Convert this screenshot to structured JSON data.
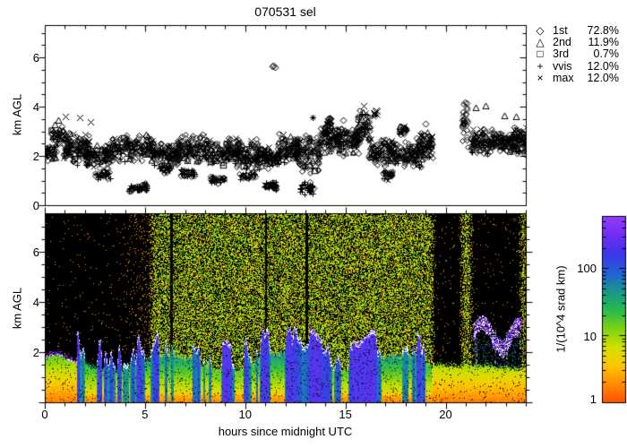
{
  "title": "070531 sel",
  "axes": {
    "x": {
      "label": "hours since midnight UTC",
      "min": 0,
      "max": 24,
      "major_ticks": [
        0,
        5,
        10,
        15,
        20
      ],
      "minor_step": 1
    },
    "y_top": {
      "label": "km AGL",
      "min": 0,
      "max": 7.3,
      "label_ticks": [
        0,
        2,
        4,
        6
      ],
      "minor_step": 0.5
    },
    "y_bottom": {
      "label": "km AGL",
      "min": 0,
      "max": 7.54,
      "label_ticks": [
        2,
        4,
        6
      ],
      "minor_step": 0.5
    }
  },
  "legend": {
    "items": [
      {
        "symbol": "diamond",
        "symbol_char": "◇",
        "label": "1st",
        "pct": "72.8%"
      },
      {
        "symbol": "triangle",
        "symbol_char": "△",
        "label": "2nd",
        "pct": "11.9%"
      },
      {
        "symbol": "square",
        "symbol_char": "□",
        "label": "3rd",
        "pct": "0.7%"
      },
      {
        "symbol": "plus",
        "symbol_char": "+",
        "label": "vvis",
        "pct": "12.0%"
      },
      {
        "symbol": "cross",
        "symbol_char": "×",
        "label": "max",
        "pct": "12.0%"
      }
    ]
  },
  "colorbar": {
    "label": "1/(10^4 srad km)",
    "ticks": [
      "1",
      "10",
      "100"
    ],
    "tick_values": [
      1,
      10,
      100
    ],
    "range": [
      1,
      600
    ],
    "scale": "log",
    "stops": [
      [
        0.0,
        255,
        80,
        0
      ],
      [
        0.1,
        255,
        140,
        0
      ],
      [
        0.2,
        255,
        200,
        0
      ],
      [
        0.3,
        210,
        225,
        0
      ],
      [
        0.4,
        120,
        210,
        20
      ],
      [
        0.5,
        40,
        185,
        80
      ],
      [
        0.6,
        25,
        150,
        140
      ],
      [
        0.7,
        35,
        95,
        215
      ],
      [
        0.8,
        60,
        55,
        235
      ],
      [
        0.9,
        115,
        45,
        245
      ],
      [
        1.0,
        150,
        60,
        255
      ]
    ]
  },
  "chart_data": {
    "type": "heatmap",
    "title": "070531 sel",
    "xlabel": "hours since midnight UTC",
    "ylabel": "km AGL",
    "xrange": [
      0,
      24
    ],
    "panels": [
      {
        "name": "cloud-base-scatter",
        "yrange": [
          0,
          7.3
        ],
        "description": "black markers: cloud base heights 1st/2nd/3rd layer, vvis, max; dense band 1.5-3.5 km"
      },
      {
        "name": "backscatter-image",
        "yrange": [
          0,
          7.54
        ],
        "description": "lidar backscatter, log color scale 1-600 1/(10^4 srad km)"
      }
    ],
    "seed": 20070531,
    "scatter_segments": [
      [
        0.0,
        0.6,
        1.75,
        2.6,
        40,
        "b"
      ],
      [
        0.3,
        1.1,
        2.3,
        3.3,
        45,
        "b"
      ],
      [
        0.9,
        2.2,
        1.6,
        3.1,
        120,
        "b"
      ],
      [
        2.0,
        3.4,
        1.45,
        2.65,
        110,
        "b"
      ],
      [
        2.45,
        3.3,
        1.05,
        1.5,
        35,
        "l"
      ],
      [
        3.3,
        5.4,
        1.75,
        2.95,
        150,
        "b"
      ],
      [
        4.15,
        5.1,
        0.55,
        0.9,
        45,
        "l"
      ],
      [
        5.3,
        6.7,
        1.55,
        2.65,
        110,
        "b"
      ],
      [
        5.7,
        6.3,
        1.25,
        1.7,
        30,
        "l"
      ],
      [
        6.6,
        8.1,
        1.7,
        2.95,
        115,
        "b"
      ],
      [
        6.8,
        7.5,
        1.1,
        1.5,
        35,
        "l"
      ],
      [
        8.0,
        9.7,
        1.55,
        2.8,
        130,
        "b"
      ],
      [
        8.25,
        8.95,
        0.85,
        1.2,
        40,
        "l"
      ],
      [
        9.5,
        10.7,
        1.45,
        2.7,
        95,
        "b"
      ],
      [
        9.7,
        10.5,
        1.0,
        1.45,
        30,
        "l"
      ],
      [
        10.5,
        11.7,
        1.4,
        2.45,
        95,
        "b"
      ],
      [
        10.95,
        11.55,
        0.6,
        1.0,
        40,
        "l"
      ],
      [
        11.6,
        12.7,
        1.65,
        3.0,
        100,
        "b"
      ],
      [
        12.5,
        13.7,
        1.2,
        2.95,
        100,
        "b"
      ],
      [
        12.65,
        13.45,
        0.35,
        1.05,
        35,
        "lp"
      ],
      [
        13.7,
        14.7,
        2.1,
        3.35,
        90,
        "b"
      ],
      [
        14.05,
        14.3,
        2.9,
        3.75,
        25,
        "ln"
      ],
      [
        14.6,
        15.7,
        1.95,
        3.3,
        100,
        "b"
      ],
      [
        15.55,
        16.25,
        2.35,
        4.0,
        60,
        "b"
      ],
      [
        16.15,
        17.5,
        1.5,
        2.85,
        120,
        "b"
      ],
      [
        16.85,
        17.35,
        1.0,
        1.45,
        30,
        "l"
      ],
      [
        16.35,
        16.65,
        3.55,
        3.9,
        10,
        "x"
      ],
      [
        17.4,
        18.8,
        1.5,
        2.75,
        110,
        "b"
      ],
      [
        17.65,
        18.05,
        2.85,
        3.3,
        25,
        "b"
      ],
      [
        18.7,
        19.35,
        1.75,
        3.1,
        70,
        "b"
      ],
      [
        20.82,
        21.08,
        2.35,
        4.3,
        32,
        "ln"
      ],
      [
        21.25,
        22.35,
        2.0,
        3.15,
        95,
        "b"
      ],
      [
        22.3,
        23.35,
        2.15,
        3.05,
        85,
        "b"
      ],
      [
        23.3,
        24.0,
        2.0,
        3.25,
        80,
        "b"
      ]
    ],
    "scatter_features": [
      [
        11.33,
        5.62,
        "d2"
      ],
      [
        13.35,
        3.55,
        "a"
      ],
      [
        0.5,
        3.28,
        "t"
      ],
      [
        0.68,
        3.45,
        "t"
      ],
      [
        1.05,
        3.6,
        "x"
      ],
      [
        1.75,
        3.55,
        "x"
      ],
      [
        2.3,
        3.38,
        "x"
      ],
      [
        15.9,
        4.05,
        "x"
      ],
      [
        16.45,
        3.75,
        "x"
      ],
      [
        16.55,
        3.85,
        "x"
      ],
      [
        21.5,
        3.95,
        "t"
      ],
      [
        21.98,
        4.02,
        "t"
      ],
      [
        22.92,
        3.62,
        "t"
      ],
      [
        23.52,
        3.6,
        "t"
      ],
      [
        23.7,
        2.95,
        "s"
      ],
      [
        23.82,
        2.88,
        "s"
      ],
      [
        14.9,
        3.45,
        "d"
      ],
      [
        19.0,
        3.3,
        "d"
      ]
    ],
    "image": {
      "dense_speckle_regions": [
        [
          5.3,
          19.35
        ],
        [
          20.8,
          21.25
        ],
        [
          23.75,
          24.0
        ]
      ],
      "dark_columns": [
        [
          6.25,
          6.38
        ],
        [
          10.95,
          11.08
        ],
        [
          13.0,
          13.12
        ]
      ],
      "sparse_orange_density": 0.013,
      "dense_density": 0.53,
      "bl_cloud_streak_trange": [
        1.6,
        19.35
      ],
      "right_cloud_box": [
        21.35,
        23.95,
        1.9,
        3.3
      ],
      "right_streaks": [
        [
          20.95,
          7.4
        ],
        [
          21.5,
          2.6
        ],
        [
          22.45,
          3.0
        ],
        [
          23.05,
          2.8
        ],
        [
          23.85,
          3.6
        ]
      ],
      "diamond_line_trace": [
        20.88,
        21.08,
        2.4,
        4.3
      ]
    }
  }
}
